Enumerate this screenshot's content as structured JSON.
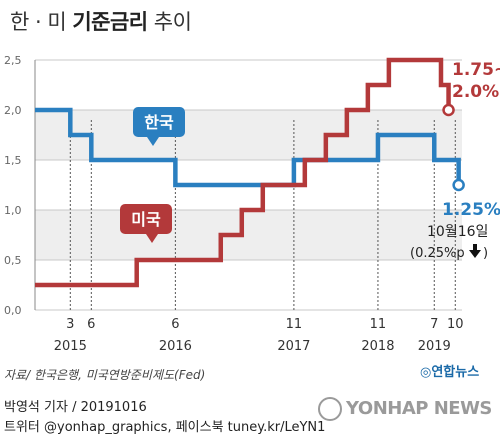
{
  "header": {
    "title_prefix": "한 · 미 ",
    "title_bold": "기준금리",
    "title_suffix": " 추이"
  },
  "chart_data": {
    "type": "line",
    "step": true,
    "title": "한 · 미 기준금리 추이",
    "ylim": [
      0,
      2.5
    ],
    "yticks": [
      "0,0",
      "0,5",
      "1,0",
      "1,5",
      "2,0",
      "2,5"
    ],
    "ytick_values": [
      0,
      0.5,
      1.0,
      1.5,
      2.0,
      2.5
    ],
    "xticks": [
      {
        "month": "3",
        "year": "2015",
        "t": 2015.17
      },
      {
        "month": "6",
        "year": "",
        "t": 2015.42
      },
      {
        "month": "6",
        "year": "2016",
        "t": 2016.42
      },
      {
        "month": "11",
        "year": "2017",
        "t": 2017.83
      },
      {
        "month": "11",
        "year": "2018",
        "t": 2018.83
      },
      {
        "month": "7",
        "year": "2019",
        "t": 2019.5
      },
      {
        "month": "10",
        "year": "",
        "t": 2019.75
      }
    ],
    "x_start": 2014.75,
    "x_end": 2019.83,
    "series": [
      {
        "name": "한국",
        "color": "#2a7fc0",
        "points": [
          [
            2014.75,
            2.0
          ],
          [
            2015.17,
            1.75
          ],
          [
            2015.42,
            1.5
          ],
          [
            2016.42,
            1.25
          ],
          [
            2017.83,
            1.5
          ],
          [
            2018.83,
            1.75
          ],
          [
            2019.5,
            1.5
          ],
          [
            2019.79,
            1.25
          ]
        ]
      },
      {
        "name": "미국",
        "color": "#b3393a",
        "points": [
          [
            2014.75,
            0.25
          ],
          [
            2015.96,
            0.5
          ],
          [
            2016.96,
            0.75
          ],
          [
            2017.21,
            1.0
          ],
          [
            2017.46,
            1.25
          ],
          [
            2017.96,
            1.5
          ],
          [
            2018.21,
            1.75
          ],
          [
            2018.46,
            2.0
          ],
          [
            2018.71,
            2.25
          ],
          [
            2018.96,
            2.5
          ],
          [
            2019.58,
            2.25
          ],
          [
            2019.67,
            2.0
          ]
        ]
      }
    ],
    "labels": {
      "korea": "한국",
      "usa": "미국",
      "us_range": "1.75~",
      "us_rate": "2.0%",
      "kr_rate": "1.25%",
      "kr_date": "10월16일",
      "kr_change": "(0.25%p"
    }
  },
  "footer": {
    "source": "자료/ 한국은행, 미국연방준비제도(Fed)",
    "agency_logo": "연합뉴스",
    "byline": "박영석 기자 /  20191016",
    "social": "트위터 @yonhap_graphics, 페이스북 tuney.kr/LeYN1",
    "watermark": "YONHAP NEWS"
  }
}
